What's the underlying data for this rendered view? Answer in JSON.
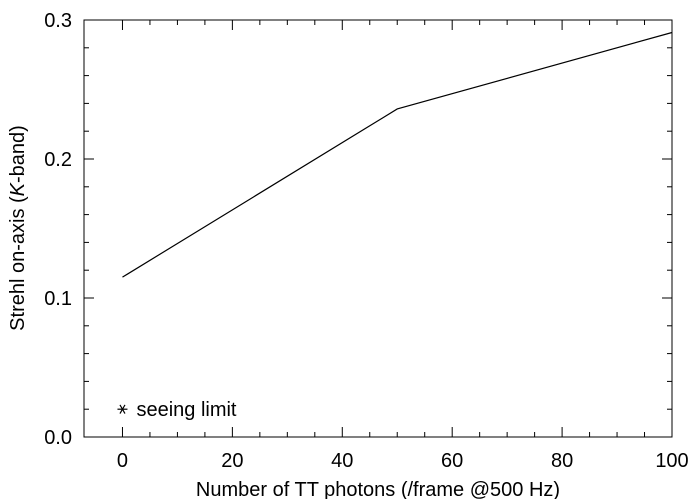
{
  "chart_data": {
    "type": "line",
    "title": "",
    "xlabel": "Number of TT photons (/frame @500 Hz)",
    "ylabel_prefix": "Strehl on-axis (",
    "ylabel_italic": "K",
    "ylabel_suffix": "-band)",
    "xlim": [
      -7,
      100
    ],
    "ylim": [
      0,
      0.3
    ],
    "x_ticks": [
      0,
      20,
      40,
      60,
      80,
      100
    ],
    "y_ticks": [
      0.0,
      0.1,
      0.2,
      0.3
    ],
    "y_tick_labels": [
      "0.0",
      "0.1",
      "0.2",
      "0.3"
    ],
    "grid": false,
    "series": [
      {
        "x": [
          0,
          50,
          100
        ],
        "y": [
          0.115,
          0.236,
          0.291
        ],
        "color": "#000000"
      }
    ],
    "markers": [
      {
        "x": 0,
        "y": 0.02,
        "symbol": "asterisk",
        "label": "seeing limit"
      }
    ]
  }
}
